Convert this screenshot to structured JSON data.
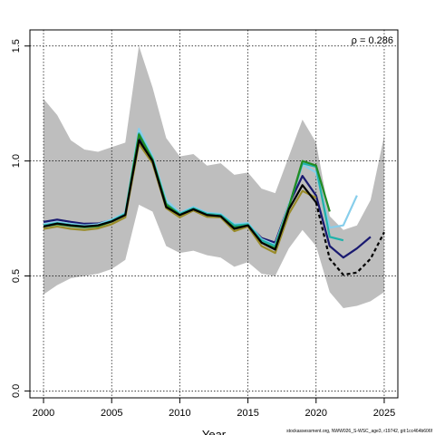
{
  "chart_data": {
    "type": "line",
    "xlabel": "Year",
    "ylabel": "",
    "annotation": "ρ = 0.286",
    "footer_text": "stockassessment.org, NWW026_S-WSC_age3, r19742, git:1cc464b606f",
    "xlim": [
      1999,
      2026
    ],
    "ylim": [
      -0.03,
      1.57
    ],
    "x_ticks": [
      2000,
      2005,
      2010,
      2015,
      2020,
      2025
    ],
    "y_ticks": [
      0.0,
      0.5,
      1.0,
      1.5
    ],
    "x_tick_labels": [
      "2000",
      "2005",
      "2010",
      "2015",
      "2020",
      "2025"
    ],
    "y_tick_labels": [
      "0.0",
      "0.5",
      "1.0",
      "1.5"
    ],
    "grid": true,
    "grid_x": [
      2000,
      2005,
      2010,
      2015,
      2020,
      2025
    ],
    "grid_y": [
      0.0,
      0.5,
      1.0,
      1.5
    ],
    "confidence_band": {
      "color": "#bebebe",
      "x": [
        2000,
        2001,
        2002,
        2003,
        2004,
        2005,
        2006,
        2007,
        2008,
        2009,
        2010,
        2011,
        2012,
        2013,
        2014,
        2015,
        2016,
        2017,
        2018,
        2019,
        2020,
        2021,
        2022,
        2023,
        2024,
        2025
      ],
      "upper": [
        1.27,
        1.2,
        1.09,
        1.05,
        1.04,
        1.06,
        1.08,
        1.5,
        1.32,
        1.1,
        1.02,
        1.03,
        0.98,
        0.99,
        0.94,
        0.95,
        0.88,
        0.86,
        1.02,
        1.18,
        1.08,
        0.76,
        0.7,
        0.72,
        0.83,
        1.11
      ],
      "lower": [
        0.42,
        0.46,
        0.49,
        0.5,
        0.51,
        0.53,
        0.57,
        0.81,
        0.78,
        0.63,
        0.6,
        0.61,
        0.59,
        0.58,
        0.54,
        0.56,
        0.51,
        0.5,
        0.62,
        0.7,
        0.63,
        0.43,
        0.36,
        0.37,
        0.39,
        0.43
      ]
    },
    "series": [
      {
        "color": "#191970",
        "dashed": false,
        "x": [
          2000,
          2001,
          2002,
          2003,
          2004,
          2005,
          2006,
          2007,
          2008,
          2009,
          2010,
          2011,
          2012,
          2013,
          2014,
          2015,
          2016,
          2017,
          2018,
          2019,
          2020,
          2021,
          2022,
          2023,
          2024
        ],
        "values": [
          0.735,
          0.745,
          0.735,
          0.727,
          0.728,
          0.743,
          0.77,
          1.1,
          1.01,
          0.81,
          0.77,
          0.795,
          0.77,
          0.765,
          0.715,
          0.725,
          0.665,
          0.645,
          0.81,
          0.935,
          0.85,
          0.63,
          0.58,
          0.62,
          0.67
        ]
      },
      {
        "color": "#87ceeb",
        "dashed": false,
        "x": [
          2000,
          2001,
          2002,
          2003,
          2004,
          2005,
          2006,
          2007,
          2008,
          2009,
          2010,
          2011,
          2012,
          2013,
          2014,
          2015,
          2016,
          2017,
          2018,
          2019,
          2020,
          2021,
          2022,
          2023
        ],
        "values": [
          0.725,
          0.735,
          0.727,
          0.72,
          0.725,
          0.745,
          0.775,
          1.14,
          1.02,
          0.83,
          0.775,
          0.8,
          0.775,
          0.77,
          0.725,
          0.73,
          0.66,
          0.635,
          0.81,
          0.985,
          0.95,
          0.71,
          0.72,
          0.85
        ]
      },
      {
        "color": "#20b2aa",
        "dashed": false,
        "x": [
          2000,
          2001,
          2002,
          2003,
          2004,
          2005,
          2006,
          2007,
          2008,
          2009,
          2010,
          2011,
          2012,
          2013,
          2014,
          2015,
          2016,
          2017,
          2018,
          2019,
          2020,
          2021,
          2022
        ],
        "values": [
          0.72,
          0.73,
          0.722,
          0.716,
          0.72,
          0.74,
          0.77,
          1.12,
          1.01,
          0.815,
          0.77,
          0.795,
          0.77,
          0.765,
          0.72,
          0.725,
          0.655,
          0.63,
          0.8,
          0.99,
          0.975,
          0.67,
          0.655
        ]
      },
      {
        "color": "#228b22",
        "dashed": false,
        "x": [
          2000,
          2001,
          2002,
          2003,
          2004,
          2005,
          2006,
          2007,
          2008,
          2009,
          2010,
          2011,
          2012,
          2013,
          2014,
          2015,
          2016,
          2017,
          2018,
          2019,
          2020,
          2021
        ],
        "values": [
          0.715,
          0.725,
          0.717,
          0.712,
          0.716,
          0.736,
          0.765,
          1.115,
          1.005,
          0.81,
          0.765,
          0.79,
          0.765,
          0.76,
          0.71,
          0.72,
          0.645,
          0.62,
          0.8,
          1.0,
          0.98,
          0.78
        ]
      },
      {
        "color": "#9a8c2a",
        "dashed": false,
        "x": [
          2000,
          2001,
          2002,
          2003,
          2004,
          2005,
          2006,
          2007,
          2008,
          2009,
          2010,
          2011,
          2012,
          2013,
          2014,
          2015,
          2016,
          2017,
          2018,
          2019,
          2020
        ],
        "values": [
          0.705,
          0.715,
          0.705,
          0.7,
          0.707,
          0.725,
          0.755,
          1.075,
          0.99,
          0.795,
          0.755,
          0.785,
          0.757,
          0.755,
          0.695,
          0.715,
          0.63,
          0.6,
          0.77,
          0.87,
          0.84
        ]
      },
      {
        "color": "#000000",
        "dashed": false,
        "x": [
          2000,
          2001,
          2002,
          2003,
          2004,
          2005,
          2006,
          2007,
          2008,
          2009,
          2010,
          2011,
          2012,
          2013,
          2014,
          2015,
          2016,
          2017,
          2018,
          2019,
          2020
        ],
        "values": [
          0.715,
          0.728,
          0.72,
          0.715,
          0.72,
          0.737,
          0.765,
          1.09,
          1.0,
          0.8,
          0.765,
          0.79,
          0.765,
          0.76,
          0.705,
          0.72,
          0.645,
          0.615,
          0.79,
          0.895,
          0.82
        ]
      },
      {
        "color": "#000000",
        "dashed": true,
        "x": [
          2020,
          2021,
          2022,
          2023,
          2024,
          2025
        ],
        "values": [
          0.82,
          0.575,
          0.505,
          0.515,
          0.575,
          0.69
        ]
      }
    ]
  }
}
